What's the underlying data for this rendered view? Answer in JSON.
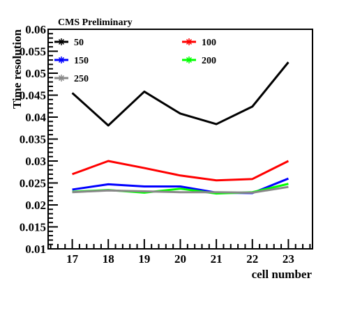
{
  "chart_data": {
    "type": "line",
    "annotation": "CMS Preliminary",
    "xlabel": "cell number",
    "ylabel": "Time resolution",
    "xlim": [
      16.33,
      23.67
    ],
    "ylim": [
      0.01,
      0.06
    ],
    "x": [
      17,
      18,
      19,
      20,
      21,
      22,
      23
    ],
    "x_ticks": [
      "17",
      "18",
      "19",
      "20",
      "21",
      "22",
      "23"
    ],
    "y_ticks": [
      "0.01",
      "0.015",
      "0.02",
      "0.025",
      "0.03",
      "0.035",
      "0.04",
      "0.045",
      "0.05",
      "0.055",
      "0.06"
    ],
    "legend_position": "top",
    "grid": false,
    "series": [
      {
        "name": "50",
        "color": "#000000",
        "values": [
          0.0455,
          0.0381,
          0.0458,
          0.0408,
          0.0384,
          0.0424,
          0.0525
        ]
      },
      {
        "name": "100",
        "color": "#ff0000",
        "values": [
          0.027,
          0.03,
          0.0284,
          0.0267,
          0.0256,
          0.0259,
          0.03
        ]
      },
      {
        "name": "150",
        "color": "#0000ff",
        "values": [
          0.0235,
          0.0247,
          0.0242,
          0.0242,
          0.0228,
          0.0227,
          0.026
        ]
      },
      {
        "name": "200",
        "color": "#00ff00",
        "values": [
          0.023,
          0.0234,
          0.0228,
          0.0237,
          0.0226,
          0.0229,
          0.0248
        ]
      },
      {
        "name": "250",
        "color": "#888888",
        "values": [
          0.0229,
          0.0233,
          0.0231,
          0.0229,
          0.0229,
          0.0228,
          0.0241
        ]
      }
    ]
  }
}
